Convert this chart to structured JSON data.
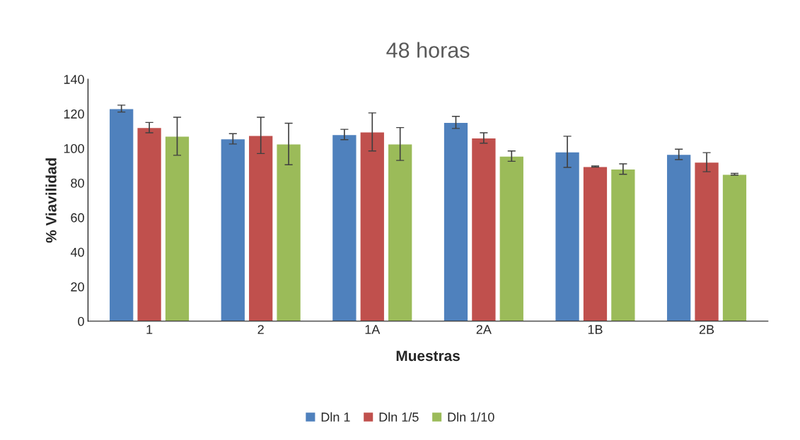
{
  "chart_data": {
    "type": "bar",
    "title": "48 horas",
    "xlabel": "Muestras",
    "ylabel": "% Viavilidad",
    "categories": [
      "1",
      "2",
      "1A",
      "2A",
      "1B",
      "2B"
    ],
    "series": [
      {
        "name": "Dln 1",
        "color": "#4f81bd",
        "values": [
          123,
          105.5,
          108,
          115,
          98,
          96.5
        ],
        "errors": [
          2,
          3,
          3,
          3.5,
          9,
          3
        ]
      },
      {
        "name": "Dln 1/5",
        "color": "#c0504d",
        "values": [
          112,
          107.5,
          109.5,
          106,
          89.5,
          92
        ],
        "errors": [
          3,
          10.5,
          11,
          3,
          0.3,
          5.5
        ]
      },
      {
        "name": "Dln 1/10",
        "color": "#9bbb59",
        "values": [
          107,
          102.5,
          102.5,
          95.5,
          88,
          85
        ],
        "errors": [
          11,
          12,
          9.5,
          3,
          3,
          0.5
        ]
      }
    ],
    "ylim": [
      0,
      140
    ],
    "yticks": [
      0,
      20,
      40,
      60,
      80,
      100,
      120,
      140
    ],
    "grid": false,
    "legend": "bottom"
  }
}
